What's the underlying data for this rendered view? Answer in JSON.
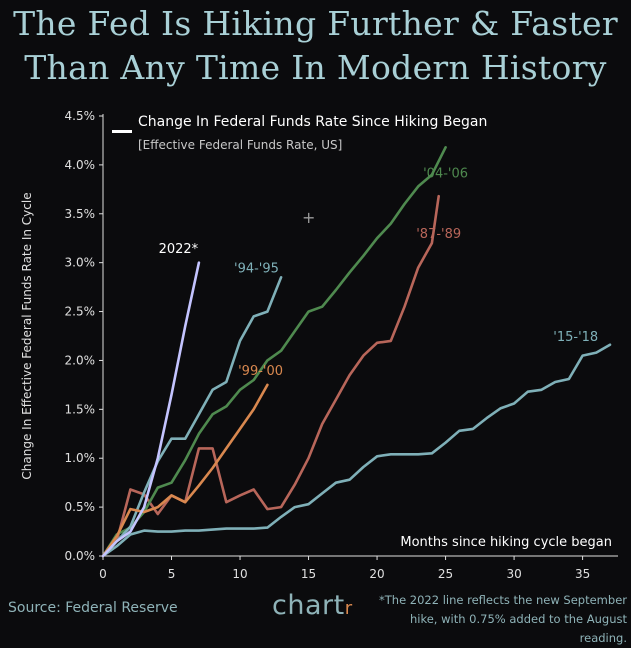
{
  "title_line1": "The Fed Is Hiking Further & Faster",
  "title_line2": "Than Any Time In Modern History",
  "legend_title": "Change In Federal Funds Rate Since Hiking Began",
  "legend_subtitle": "[Effective Federal Funds Rate, US]",
  "source": "Source: Federal Reserve",
  "brand": "chart",
  "brand_accent": "r",
  "footnote": "*The 2022 line reflects the new September hike, with 0.75% added to the August reading.",
  "plus_mark": "+",
  "chart_data": {
    "type": "line",
    "xlabel": "Months since hiking cycle began",
    "ylabel": "Change In Effective Federal Funds Rate In Cycle",
    "xlim": [
      0,
      37
    ],
    "ylim": [
      0,
      4.5
    ],
    "x_ticks": [
      0,
      5,
      10,
      15,
      20,
      25,
      30,
      35
    ],
    "y_ticks": [
      0,
      0.5,
      1.0,
      1.5,
      2.0,
      2.5,
      3.0,
      3.5,
      4.0,
      4.5
    ],
    "y_tick_labels": [
      "0.0%",
      "0.5%",
      "1.0%",
      "1.5%",
      "2.0%",
      "2.5%",
      "3.0%",
      "3.5%",
      "4.0%",
      "4.5%"
    ],
    "series": [
      {
        "name": "'15-'18",
        "color": "#7fb0b8",
        "label_at": [
          34.5,
          2.2
        ],
        "x": [
          0,
          1,
          2,
          3,
          4,
          5,
          6,
          7,
          8,
          9,
          10,
          11,
          12,
          13,
          14,
          15,
          16,
          17,
          18,
          19,
          20,
          21,
          22,
          23,
          24,
          25,
          26,
          27,
          28,
          29,
          30,
          31,
          32,
          33,
          34,
          35,
          36,
          37
        ],
        "y": [
          0,
          0.1,
          0.22,
          0.26,
          0.25,
          0.25,
          0.26,
          0.26,
          0.27,
          0.28,
          0.28,
          0.28,
          0.29,
          0.4,
          0.5,
          0.53,
          0.64,
          0.75,
          0.78,
          0.91,
          1.02,
          1.04,
          1.04,
          1.04,
          1.05,
          1.16,
          1.28,
          1.3,
          1.41,
          1.51,
          1.56,
          1.68,
          1.7,
          1.78,
          1.81,
          2.05,
          2.08,
          2.16
        ]
      },
      {
        "name": "'87-'89",
        "color": "#b8665a",
        "label_at": [
          24.5,
          3.25
        ],
        "x": [
          0,
          1,
          2,
          3,
          4,
          5,
          6,
          7,
          8,
          9,
          10,
          11,
          12,
          13,
          14,
          15,
          16,
          17,
          18,
          19,
          20,
          21,
          22,
          23,
          24,
          24.5
        ],
        "y": [
          0,
          0.15,
          0.68,
          0.63,
          0.43,
          0.62,
          0.55,
          1.1,
          1.1,
          0.55,
          0.62,
          0.68,
          0.48,
          0.5,
          0.73,
          1.0,
          1.35,
          1.6,
          1.85,
          2.05,
          2.18,
          2.2,
          2.55,
          2.95,
          3.2,
          3.68
        ]
      },
      {
        "name": "'04-'06",
        "color": "#4f8a4f",
        "label_at": [
          25,
          3.87
        ],
        "x": [
          0,
          1,
          2,
          3,
          4,
          5,
          6,
          7,
          8,
          9,
          10,
          11,
          12,
          13,
          14,
          15,
          16,
          17,
          18,
          19,
          20,
          21,
          22,
          23,
          24,
          25
        ],
        "y": [
          0,
          0.22,
          0.29,
          0.45,
          0.7,
          0.75,
          0.98,
          1.25,
          1.45,
          1.53,
          1.7,
          1.8,
          2.0,
          2.1,
          2.3,
          2.5,
          2.55,
          2.72,
          2.9,
          3.07,
          3.25,
          3.4,
          3.6,
          3.78,
          3.9,
          4.18
        ]
      },
      {
        "name": "'94-'95",
        "color": "#7fb0b8",
        "label_at": [
          11.2,
          2.9
        ],
        "x": [
          0,
          1,
          2,
          3,
          4,
          5,
          6,
          7,
          8,
          9,
          10,
          11,
          12,
          13
        ],
        "y": [
          0,
          0.15,
          0.3,
          0.65,
          0.97,
          1.2,
          1.2,
          1.45,
          1.7,
          1.78,
          2.2,
          2.45,
          2.5,
          2.85
        ]
      },
      {
        "name": "'99-'00",
        "color": "#d9884f",
        "label_at": [
          11.5,
          1.85
        ],
        "x": [
          0,
          1,
          2,
          3,
          4,
          5,
          6,
          7,
          8,
          9,
          10,
          11,
          12
        ],
        "y": [
          0,
          0.2,
          0.48,
          0.45,
          0.5,
          0.62,
          0.55,
          0.72,
          0.9,
          1.1,
          1.3,
          1.5,
          1.75
        ]
      },
      {
        "name": "2022*",
        "color": "#c4c4ff",
        "label_at": [
          5.5,
          3.1
        ],
        "x": [
          0,
          1,
          2,
          3,
          4,
          5,
          6,
          7
        ],
        "y": [
          0,
          0.15,
          0.25,
          0.5,
          1.0,
          1.65,
          2.35,
          3.0
        ]
      }
    ]
  }
}
